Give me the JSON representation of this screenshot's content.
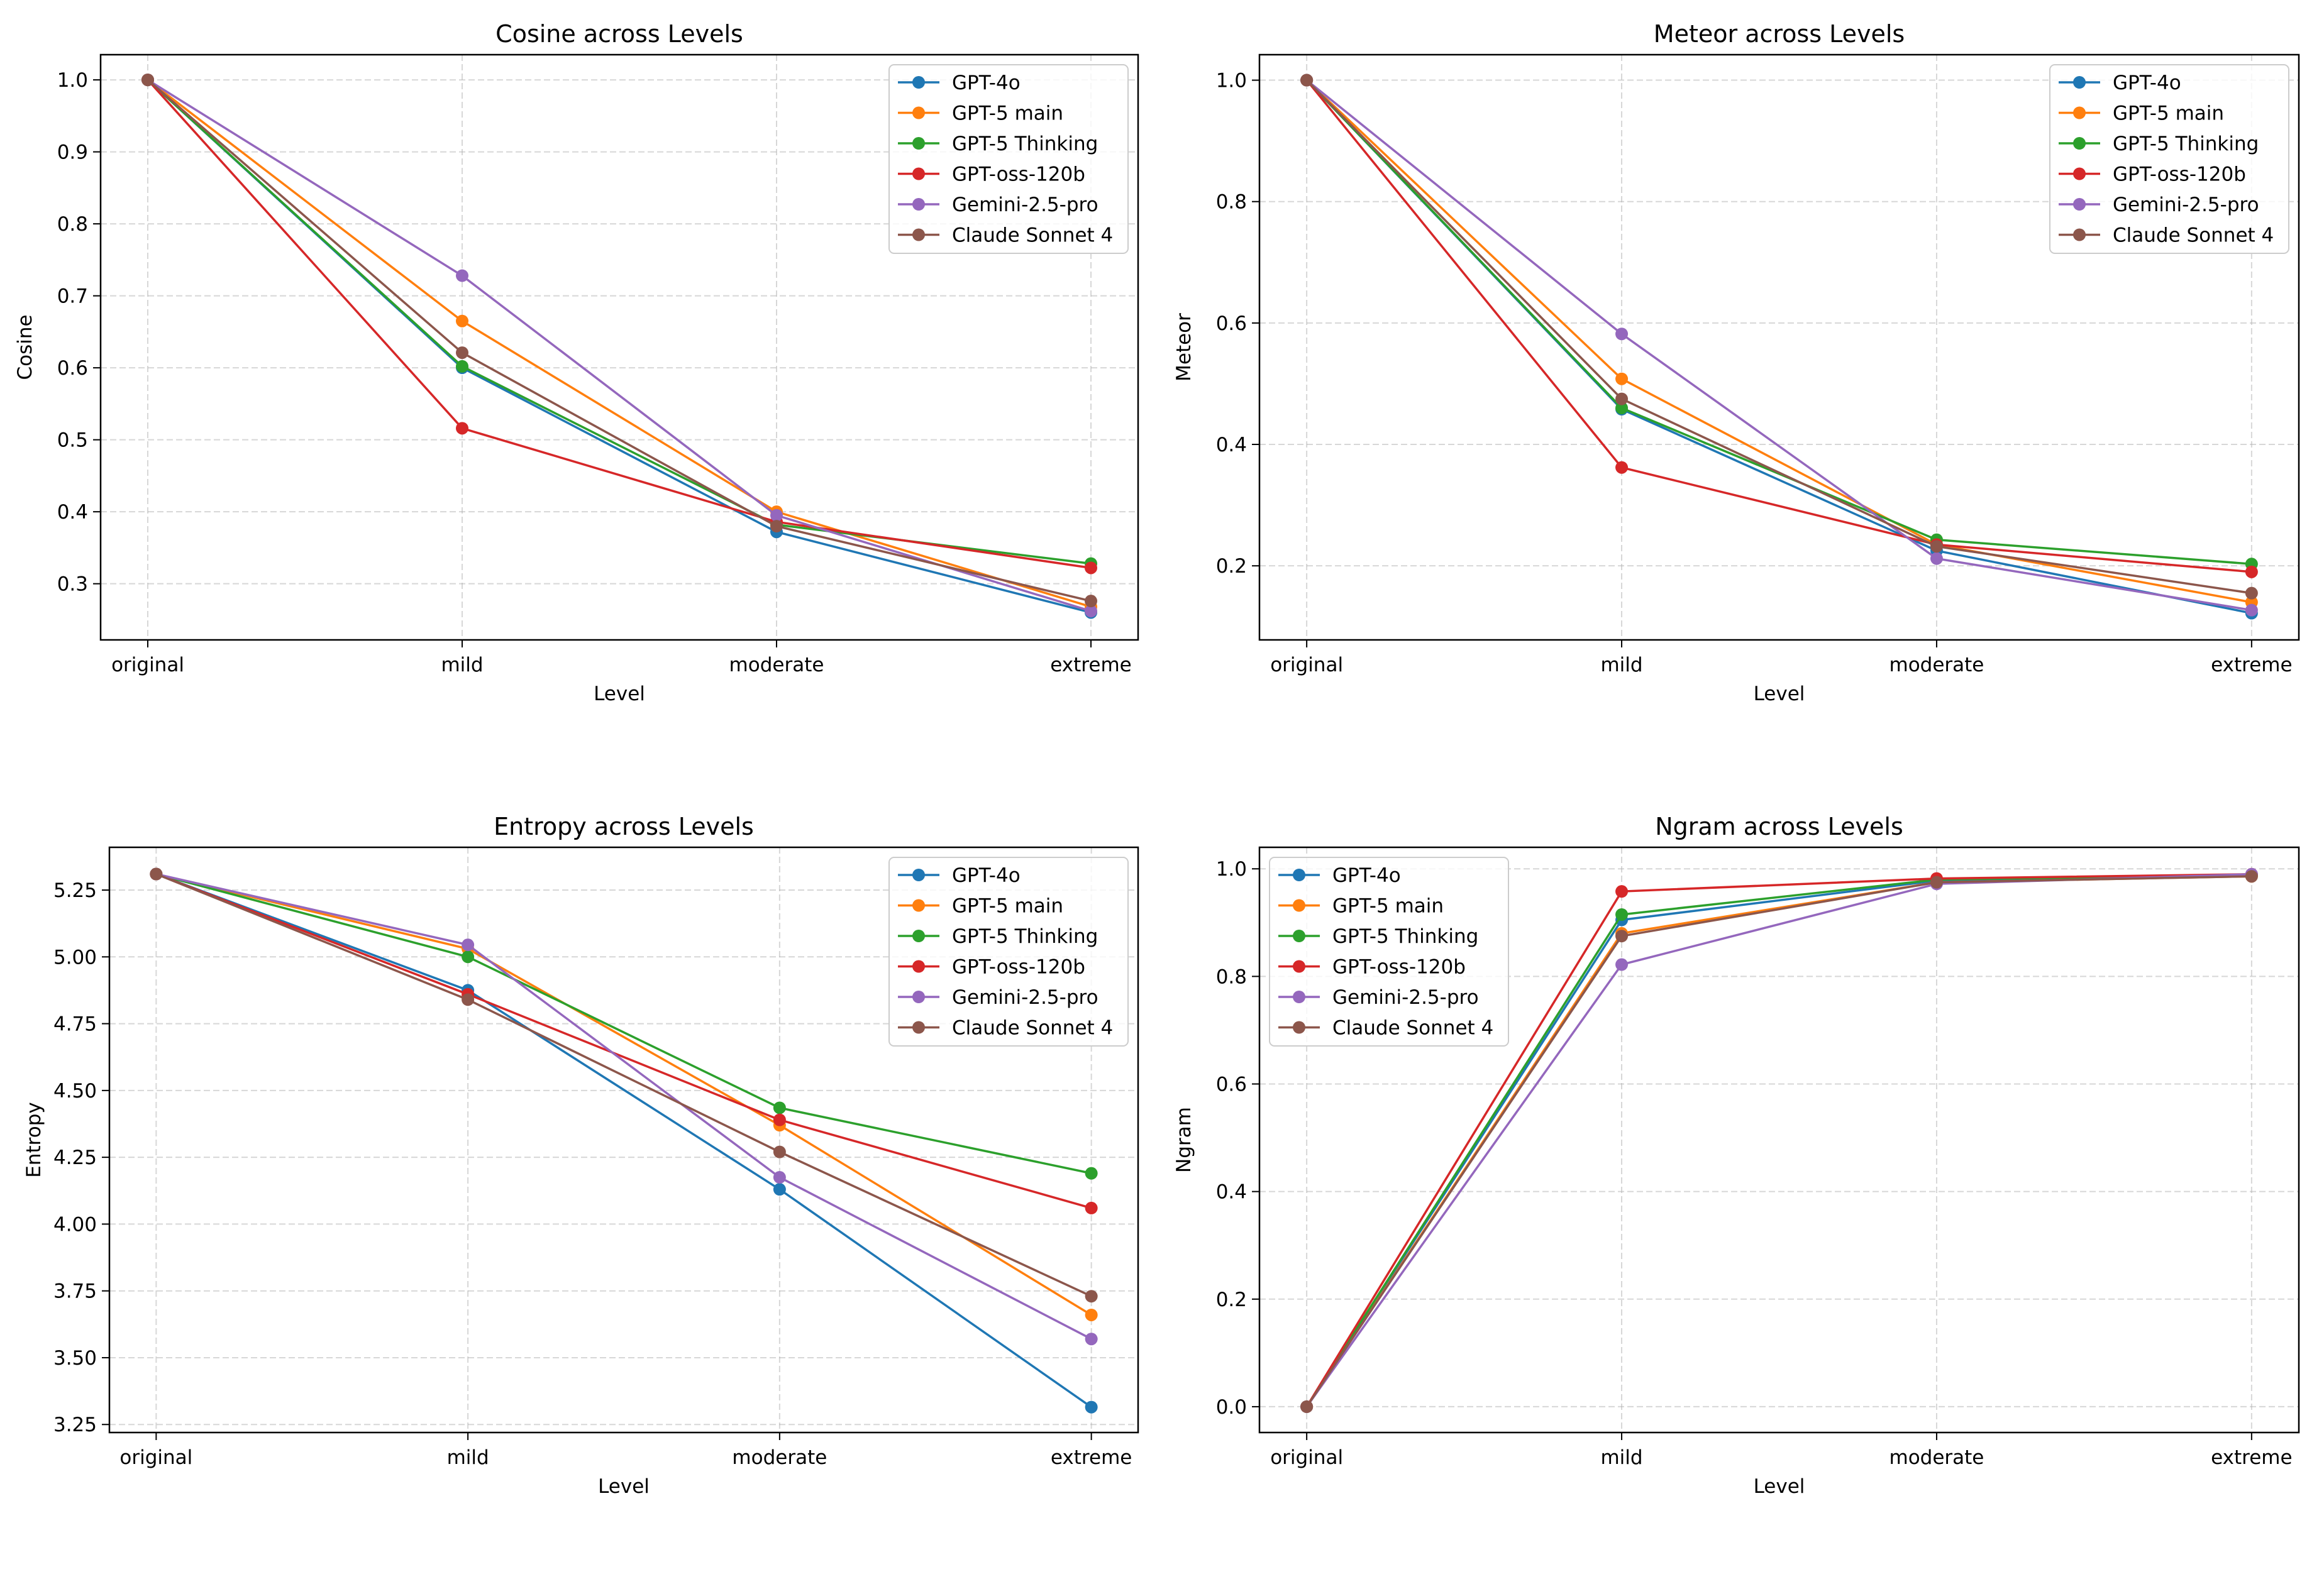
{
  "colors": {
    "GPT-4o": "#1f77b4",
    "GPT-5 main": "#ff7f0e",
    "GPT-5 Thinking": "#2ca02c",
    "GPT-oss-120b": "#d62728",
    "Gemini-2.5-pro": "#9467bd",
    "Claude Sonnet 4": "#8c564b"
  },
  "chart_data": [
    {
      "type": "line",
      "title": "Cosine across Levels",
      "xlabel": "Level",
      "ylabel": "Cosine",
      "categories": [
        "original",
        "mild",
        "moderate",
        "extreme"
      ],
      "ylim": [
        0.222,
        1.035
      ],
      "yticks": [
        "0.3",
        "0.4",
        "0.5",
        "0.6",
        "0.7",
        "0.8",
        "0.9",
        "1.0"
      ],
      "grid": true,
      "legend": "top-right",
      "series": [
        {
          "name": "GPT-4o",
          "values": [
            1.0,
            0.6,
            0.372,
            0.26
          ]
        },
        {
          "name": "GPT-5 main",
          "values": [
            1.0,
            0.665,
            0.4,
            0.268
          ]
        },
        {
          "name": "GPT-5 Thinking",
          "values": [
            1.0,
            0.602,
            0.382,
            0.328
          ]
        },
        {
          "name": "GPT-oss-120b",
          "values": [
            1.0,
            0.516,
            0.386,
            0.322
          ]
        },
        {
          "name": "Gemini-2.5-pro",
          "values": [
            1.0,
            0.728,
            0.395,
            0.262
          ]
        },
        {
          "name": "Claude Sonnet 4",
          "values": [
            1.0,
            0.621,
            0.38,
            0.276
          ]
        }
      ]
    },
    {
      "type": "line",
      "title": "Meteor across Levels",
      "xlabel": "Level",
      "ylabel": "Meteor",
      "categories": [
        "original",
        "mild",
        "moderate",
        "extreme"
      ],
      "ylim": [
        0.078,
        1.042
      ],
      "yticks": [
        "0.2",
        "0.4",
        "0.6",
        "0.8",
        "1.0"
      ],
      "grid": true,
      "legend": "top-right",
      "series": [
        {
          "name": "GPT-4o",
          "values": [
            1.0,
            0.458,
            0.225,
            0.122
          ]
        },
        {
          "name": "GPT-5 main",
          "values": [
            1.0,
            0.508,
            0.235,
            0.14
          ]
        },
        {
          "name": "GPT-5 Thinking",
          "values": [
            1.0,
            0.46,
            0.243,
            0.203
          ]
        },
        {
          "name": "GPT-oss-120b",
          "values": [
            1.0,
            0.362,
            0.235,
            0.19
          ]
        },
        {
          "name": "Gemini-2.5-pro",
          "values": [
            1.0,
            0.582,
            0.212,
            0.127
          ]
        },
        {
          "name": "Claude Sonnet 4",
          "values": [
            1.0,
            0.475,
            0.232,
            0.155
          ]
        }
      ]
    },
    {
      "type": "line",
      "title": "Entropy across Levels",
      "xlabel": "Level",
      "ylabel": "Entropy",
      "categories": [
        "original",
        "mild",
        "moderate",
        "extreme"
      ],
      "ylim": [
        3.22,
        5.41
      ],
      "yticks": [
        "3.25",
        "3.50",
        "3.75",
        "4.00",
        "4.25",
        "4.50",
        "4.75",
        "5.00",
        "5.25"
      ],
      "grid": true,
      "legend": "top-right",
      "series": [
        {
          "name": "GPT-4o",
          "values": [
            5.31,
            4.875,
            4.13,
            3.315
          ]
        },
        {
          "name": "GPT-5 main",
          "values": [
            5.31,
            5.03,
            4.37,
            3.66
          ]
        },
        {
          "name": "GPT-5 Thinking",
          "values": [
            5.31,
            5.0,
            4.435,
            4.19
          ]
        },
        {
          "name": "GPT-oss-120b",
          "values": [
            5.31,
            4.86,
            4.39,
            4.06
          ]
        },
        {
          "name": "Gemini-2.5-pro",
          "values": [
            5.31,
            5.045,
            4.175,
            3.57
          ]
        },
        {
          "name": "Claude Sonnet 4",
          "values": [
            5.31,
            4.84,
            4.27,
            3.73
          ]
        }
      ]
    },
    {
      "type": "line",
      "title": "Ngram across Levels",
      "xlabel": "Level",
      "ylabel": "Ngram",
      "categories": [
        "original",
        "mild",
        "moderate",
        "extreme"
      ],
      "ylim": [
        -0.048,
        1.04
      ],
      "yticks": [
        "0.0",
        "0.2",
        "0.4",
        "0.6",
        "0.8",
        "1.0"
      ],
      "grid": true,
      "legend": "top-left",
      "series": [
        {
          "name": "GPT-4o",
          "values": [
            0.0,
            0.905,
            0.978,
            0.988
          ]
        },
        {
          "name": "GPT-5 main",
          "values": [
            0.0,
            0.88,
            0.975,
            0.986
          ]
        },
        {
          "name": "GPT-5 Thinking",
          "values": [
            0.0,
            0.915,
            0.98,
            0.989
          ]
        },
        {
          "name": "GPT-oss-120b",
          "values": [
            0.0,
            0.958,
            0.982,
            0.99
          ]
        },
        {
          "name": "Gemini-2.5-pro",
          "values": [
            0.0,
            0.822,
            0.972,
            0.99
          ]
        },
        {
          "name": "Claude Sonnet 4",
          "values": [
            0.0,
            0.875,
            0.975,
            0.986
          ]
        }
      ]
    }
  ]
}
